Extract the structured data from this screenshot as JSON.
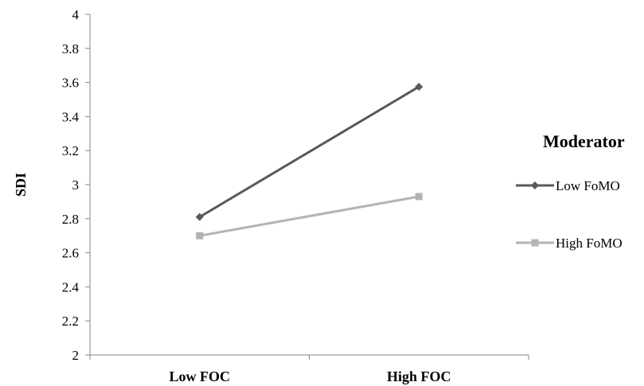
{
  "chart_data": {
    "type": "line",
    "categories": [
      "Low FOC",
      "High FOC"
    ],
    "ylabel": "SDI",
    "ylim": [
      2,
      4
    ],
    "yticks": [
      "2",
      "2.2",
      "2.4",
      "2.6",
      "2.8",
      "3",
      "3.2",
      "3.4",
      "3.6",
      "3.8",
      "4"
    ],
    "grid": false,
    "legend": {
      "title": "Moderator",
      "placement": "right"
    },
    "series": [
      {
        "name": "Low FoMO",
        "values": [
          2.81,
          3.575
        ],
        "color": "#595959",
        "marker": "diamond"
      },
      {
        "name": "High FoMO",
        "values": [
          2.7,
          2.93
        ],
        "color": "#b3b3b3",
        "marker": "square"
      }
    ]
  }
}
